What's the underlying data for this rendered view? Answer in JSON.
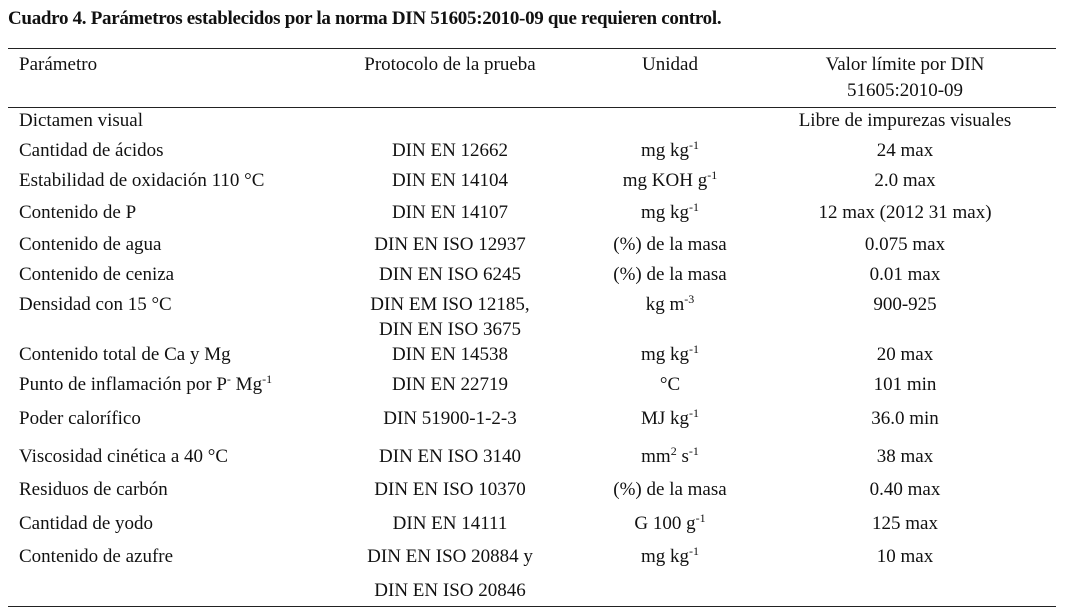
{
  "title": "Cuadro 4. Parámetros establecidos por la norma DIN 51605:2010-09 que requieren control.",
  "headers": [
    "Parámetro",
    "Protocolo de la prueba",
    "Unidad",
    "Valor límite por DIN 51605:2010-09"
  ],
  "header_lines": {
    "value_line1": "Valor límite por DIN",
    "value_line2": "51605:2010-09"
  },
  "rows": [
    {
      "parameter": [
        {
          "t": "Dictamen visual"
        }
      ],
      "protocol": [],
      "unit": [],
      "value": "Libre de impurezas visuales"
    },
    {
      "parameter": [
        {
          "t": "Cantidad de ácidos"
        }
      ],
      "protocol": [
        "DIN EN 12662"
      ],
      "unit": [
        {
          "t": "mg kg"
        },
        {
          "s": "-1"
        }
      ],
      "value": "24 max"
    },
    {
      "parameter": [
        {
          "t": "Estabilidad de oxidación 110 °C"
        }
      ],
      "protocol": [
        "DIN EN 14104"
      ],
      "unit": [
        {
          "t": "mg KOH g"
        },
        {
          "s": "-1"
        }
      ],
      "value": "2.0 max"
    },
    {
      "parameter": [
        {
          "t": "Contenido de P"
        }
      ],
      "protocol": [
        "DIN EN 14107"
      ],
      "unit": [
        {
          "t": "mg kg"
        },
        {
          "s": "-1"
        }
      ],
      "value": "12 max (2012 31 max)"
    },
    {
      "parameter": [
        {
          "t": "Contenido de agua"
        }
      ],
      "protocol": [
        "DIN EN ISO 12937"
      ],
      "unit": [
        {
          "t": "(%) de la masa"
        }
      ],
      "value": "0.075 max"
    },
    {
      "parameter": [
        {
          "t": "Contenido de ceniza"
        }
      ],
      "protocol": [
        "DIN EN ISO 6245"
      ],
      "unit": [
        {
          "t": "(%) de la masa"
        }
      ],
      "value": "0.01 max"
    },
    {
      "parameter": [
        {
          "t": "Densidad con 15 °C"
        }
      ],
      "protocol": [
        "DIN EM ISO 12185,",
        "DIN EN ISO 3675"
      ],
      "unit": [
        {
          "t": "kg m"
        },
        {
          "s": "-3"
        }
      ],
      "value": "900-925"
    },
    {
      "parameter": [
        {
          "t": "Contenido total de Ca y Mg"
        }
      ],
      "protocol": [
        "DIN EN 14538"
      ],
      "unit": [
        {
          "t": "mg kg"
        },
        {
          "s": "-1"
        }
      ],
      "value": "20 max"
    },
    {
      "parameter": [
        {
          "t": "Punto de inflamación por P"
        },
        {
          "s": "-"
        },
        {
          "t": " Mg"
        },
        {
          "s": "-1"
        }
      ],
      "protocol": [
        "DIN EN 22719"
      ],
      "unit": [
        {
          "t": "°C"
        }
      ],
      "value": "101 min"
    },
    {
      "parameter": [
        {
          "t": "Poder calorífico"
        }
      ],
      "protocol": [
        "DIN 51900-1-2-3"
      ],
      "unit": [
        {
          "t": "MJ kg"
        },
        {
          "s": "-1"
        }
      ],
      "value": "36.0 min"
    },
    {
      "parameter": [
        {
          "t": "Viscosidad cinética a 40 °C"
        }
      ],
      "protocol": [
        "DIN EN ISO 3140"
      ],
      "unit": [
        {
          "t": "mm"
        },
        {
          "s": "2"
        },
        {
          "t": " s"
        },
        {
          "s": "-1"
        }
      ],
      "value": "38 max"
    },
    {
      "parameter": [
        {
          "t": "Residuos de carbón"
        }
      ],
      "protocol": [
        "DIN EN ISO 10370"
      ],
      "unit": [
        {
          "t": "(%) de la masa"
        }
      ],
      "value": "0.40 max"
    },
    {
      "parameter": [
        {
          "t": "Cantidad de yodo"
        }
      ],
      "protocol": [
        "DIN EN 14111"
      ],
      "unit": [
        {
          "t": "G 100 g"
        },
        {
          "s": "-1"
        }
      ],
      "value": "125 max"
    },
    {
      "parameter": [
        {
          "t": "Contenido de azufre"
        }
      ],
      "protocol": [
        "DIN EN ISO 20884 y",
        "DIN EN ISO 20846"
      ],
      "unit": [
        {
          "t": "mg kg"
        },
        {
          "s": "-1"
        }
      ],
      "value": "10 max"
    }
  ]
}
